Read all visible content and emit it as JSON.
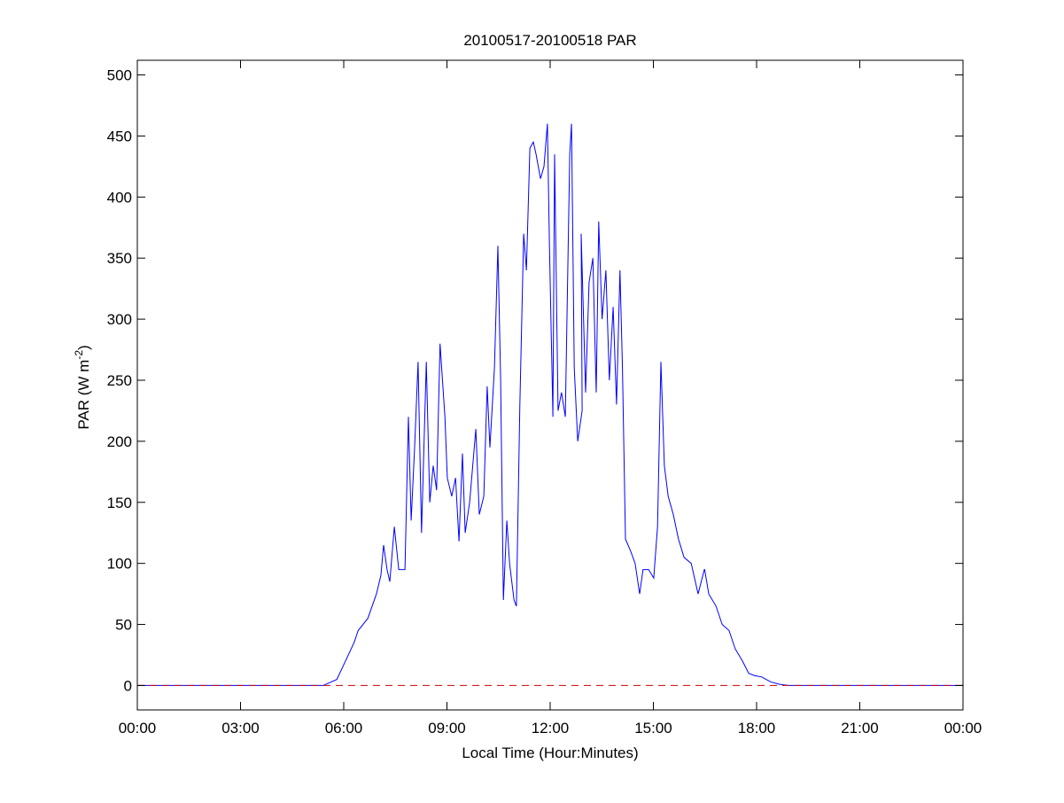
{
  "chart_data": {
    "type": "line",
    "title": "20100517-20100518 PAR",
    "xlabel": "Local Time (Hour:Minutes)",
    "ylabel": "PAR (W m",
    "ylabel_superscript": "-2",
    "ylabel_suffix": ")",
    "xlim": [
      0,
      24
    ],
    "ylim": [
      -20,
      512
    ],
    "xticks": [
      0,
      3,
      6,
      9,
      12,
      15,
      18,
      21,
      24
    ],
    "xtick_labels": [
      "00:00",
      "03:00",
      "06:00",
      "09:00",
      "12:00",
      "15:00",
      "18:00",
      "21:00",
      "00:00"
    ],
    "yticks": [
      0,
      50,
      100,
      150,
      200,
      250,
      300,
      350,
      400,
      450,
      500
    ],
    "ytick_labels": [
      "0",
      "50",
      "100",
      "150",
      "200",
      "250",
      "300",
      "350",
      "400",
      "450",
      "500"
    ],
    "grid": false,
    "series": [
      {
        "name": "PAR",
        "color": "#0000ff",
        "x_hours": [
          0,
          5.3,
          5.4,
          5.8,
          6.05,
          6.3,
          6.42,
          6.7,
          6.95,
          7.08,
          7.16,
          7.26,
          7.34,
          7.47,
          7.6,
          7.78,
          7.88,
          7.96,
          8.06,
          8.16,
          8.26,
          8.4,
          8.5,
          8.6,
          8.7,
          8.8,
          8.94,
          9.01,
          9.14,
          9.25,
          9.35,
          9.45,
          9.53,
          9.66,
          9.84,
          9.94,
          10.07,
          10.17,
          10.25,
          10.38,
          10.48,
          10.56,
          10.64,
          10.74,
          10.82,
          10.95,
          11.02,
          11.12,
          11.23,
          11.31,
          11.41,
          11.51,
          11.59,
          11.72,
          11.82,
          11.92,
          11.98,
          12.08,
          12.13,
          12.23,
          12.33,
          12.44,
          12.57,
          12.62,
          12.7,
          12.8,
          12.93,
          12.9,
          13.03,
          13.13,
          13.24,
          13.34,
          13.41,
          13.51,
          13.62,
          13.72,
          13.83,
          13.93,
          14.03,
          14.1,
          14.19,
          14.34,
          14.47,
          14.6,
          14.7,
          14.86,
          15.01,
          15.12,
          15.22,
          15.32,
          15.43,
          15.58,
          15.73,
          15.89,
          16.1,
          16.3,
          16.48,
          16.49,
          16.61,
          16.82,
          17.0,
          17.2,
          17.38,
          17.59,
          17.77,
          17.95,
          18.15,
          18.41,
          18.67,
          18.93,
          19.05,
          24
        ],
        "values": [
          0,
          0,
          0,
          5,
          20,
          35,
          45,
          55,
          75,
          90,
          115,
          95,
          85,
          130,
          95,
          95,
          220,
          135,
          195,
          265,
          125,
          265,
          150,
          180,
          160,
          280,
          220,
          170,
          155,
          170,
          118,
          190,
          125,
          150,
          210,
          140,
          155,
          245,
          195,
          260,
          360,
          250,
          70,
          135,
          100,
          70,
          65,
          230,
          370,
          340,
          440,
          445,
          435,
          415,
          425,
          460,
          360,
          220,
          435,
          225,
          240,
          220,
          435,
          460,
          260,
          200,
          225,
          370,
          240,
          330,
          350,
          240,
          380,
          300,
          340,
          250,
          310,
          230,
          340,
          260,
          120,
          110,
          100,
          75,
          95,
          95,
          88,
          130,
          265,
          180,
          155,
          140,
          120,
          105,
          100,
          75,
          95,
          95,
          75,
          65,
          50,
          45,
          30,
          20,
          10,
          8,
          7,
          3,
          1,
          0,
          0,
          0
        ]
      },
      {
        "name": "zero reference",
        "color": "#cc0000",
        "style": "dashed",
        "x_hours": [
          0,
          24
        ],
        "values": [
          0,
          0
        ]
      }
    ]
  }
}
